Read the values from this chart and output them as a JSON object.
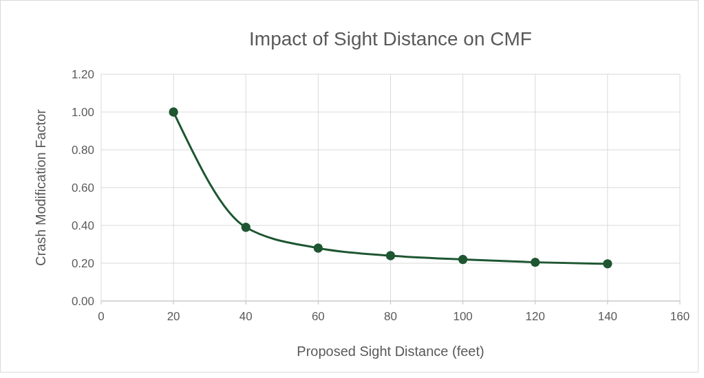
{
  "chart_data": {
    "type": "line",
    "title": "Impact of Sight Distance on CMF",
    "xlabel": "Proposed Sight Distance (feet)",
    "ylabel": "Crash Modification Factor",
    "x": [
      20,
      40,
      60,
      80,
      100,
      120,
      140
    ],
    "series": [
      {
        "color": "#1e5631",
        "values": [
          1.0,
          0.39,
          0.28,
          0.24,
          0.22,
          0.205,
          0.197
        ]
      }
    ],
    "xlim": [
      0,
      160
    ],
    "xticks": [
      0,
      20,
      40,
      60,
      80,
      100,
      120,
      140,
      160
    ],
    "ylim": [
      0,
      1.2
    ],
    "yticks": [
      {
        "value": 0,
        "label": "0.00"
      },
      {
        "value": 0.2,
        "label": "0.20"
      },
      {
        "value": 0.4,
        "label": "0.40"
      },
      {
        "value": 0.6,
        "label": "0.60"
      },
      {
        "value": 0.8,
        "label": "0.80"
      },
      {
        "value": 1,
        "label": "1.00"
      },
      {
        "value": 1.2,
        "label": "1.20"
      }
    ],
    "grid": true,
    "marker": "circle",
    "line_style": "solid"
  }
}
